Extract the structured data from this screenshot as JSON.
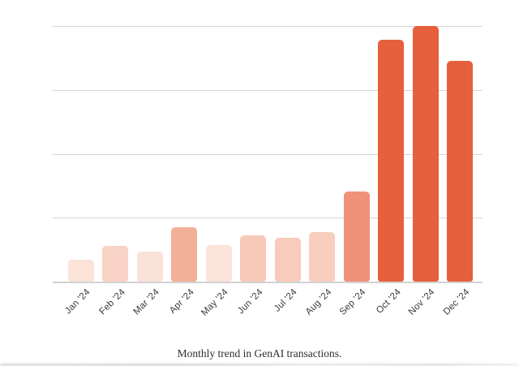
{
  "caption": {
    "text": "Monthly trend in GenAI transactions."
  },
  "chart_data": {
    "type": "bar",
    "title": "",
    "xlabel": "",
    "ylabel": "",
    "legend": false,
    "grid": true,
    "y_axis_tick_labels_visible": false,
    "ylim": [
      0,
      4
    ],
    "gridline_values": [
      0,
      1,
      2,
      3,
      4
    ],
    "units": "relative units (no y-axis tick labels shown; one gridline spacing = 1 unit; Nov '24 peak touches top gridline)",
    "categories": [
      "Jan '24",
      "Feb '24",
      "Mar '24",
      "Apr '24",
      "May '24",
      "Jun '24",
      "Jul '24",
      "Aug '24",
      "Sep '24",
      "Oct '24",
      "Nov '24",
      "Dec '24"
    ],
    "values": [
      0.34,
      0.56,
      0.47,
      0.85,
      0.57,
      0.72,
      0.69,
      0.77,
      1.41,
      3.78,
      4.0,
      3.46
    ],
    "bar_colors": [
      "#fbe3da",
      "#f8d2c4",
      "#fae2d9",
      "#f3b098",
      "#fbe3db",
      "#f7c9b8",
      "#f8ccbc",
      "#f8cebf",
      "#f0917a",
      "#e7603d",
      "#e7603d",
      "#e7603d"
    ],
    "colors": {
      "grid": "#d6d6d6",
      "axis": "#d2d2d2",
      "tick_label": "#3b3b3b",
      "caption_text": "#2f2f2f",
      "background": "#ffffff"
    }
  }
}
